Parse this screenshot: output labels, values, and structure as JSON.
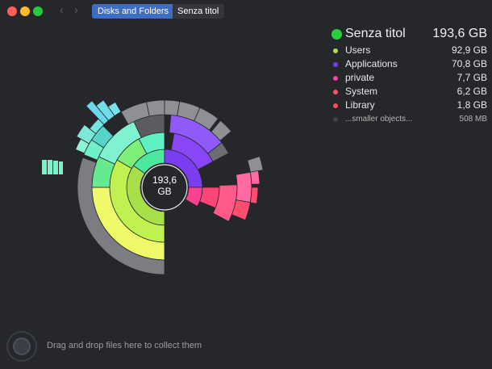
{
  "window": {
    "breadcrumbs": [
      "Disks and Folders",
      "Senza titol"
    ]
  },
  "nav": {
    "back_icon": "chevron-left-icon",
    "forward_icon": "chevron-right-icon"
  },
  "chart": {
    "center_label": "193,6\nGB"
  },
  "legend": {
    "title": "Senza titol",
    "total": "193,6 GB",
    "title_color": "#22d33c",
    "items": [
      {
        "name": "Users",
        "size": "92,9 GB",
        "color": "#a8e04a"
      },
      {
        "name": "Applications",
        "size": "70,8 GB",
        "color": "#7a3df0"
      },
      {
        "name": "private",
        "size": "7,7 GB",
        "color": "#ff3fa8"
      },
      {
        "name": "System",
        "size": "6,2 GB",
        "color": "#ff4d6d"
      },
      {
        "name": "Library",
        "size": "1,8 GB",
        "color": "#ff4b5c"
      },
      {
        "name": "...smaller objects...",
        "size": "508     MB",
        "color": "#3e4046"
      }
    ]
  },
  "footer": {
    "drop_hint": "Drag and drop files here to collect them"
  }
}
